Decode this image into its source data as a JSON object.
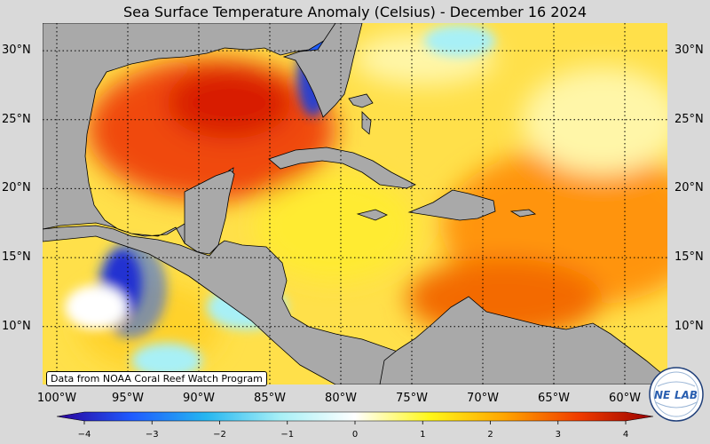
{
  "title": "Sea Surface Temperature Anomaly (Celsius) - December 16 2024",
  "map": {
    "lon_range": [
      -101,
      -57
    ],
    "lat_range": [
      5.8,
      32
    ],
    "land_color": "#a9a9a9",
    "gridlines": "dotted black",
    "lat_ticks": [
      {
        "value": 30,
        "label": "30°N"
      },
      {
        "value": 25,
        "label": "25°N"
      },
      {
        "value": 20,
        "label": "20°N"
      },
      {
        "value": 15,
        "label": "15°N"
      },
      {
        "value": 10,
        "label": "10°N"
      }
    ],
    "lon_ticks": [
      {
        "value": -100,
        "label": "100°W"
      },
      {
        "value": -95,
        "label": "95°W"
      },
      {
        "value": -90,
        "label": "90°W"
      },
      {
        "value": -85,
        "label": "85°W"
      },
      {
        "value": -80,
        "label": "80°W"
      },
      {
        "value": -75,
        "label": "75°W"
      },
      {
        "value": -70,
        "label": "70°W"
      },
      {
        "value": -65,
        "label": "65°W"
      },
      {
        "value": -60,
        "label": "60°W"
      }
    ]
  },
  "colorbar": {
    "range": [
      -4,
      4
    ],
    "ticks": [
      {
        "value": -4,
        "label": "−4"
      },
      {
        "value": -3,
        "label": "−3"
      },
      {
        "value": -2,
        "label": "−2"
      },
      {
        "value": -1,
        "label": "−1"
      },
      {
        "value": 0,
        "label": "0"
      },
      {
        "value": 1,
        "label": "1"
      },
      {
        "value": 2,
        "label": "2"
      },
      {
        "value": 3,
        "label": "3"
      },
      {
        "value": 4,
        "label": "4"
      }
    ],
    "colors": [
      "#2b0099",
      "#1f5bff",
      "#25b6f0",
      "#a8f0f6",
      "#ffffff",
      "#fff71a",
      "#ffa500",
      "#f03c00",
      "#990000"
    ]
  },
  "credit": "Data from NOAA Coral Reef Watch Program",
  "logo": {
    "text_left": "NE",
    "text_right": "LAB",
    "color": "#2a5fb0"
  }
}
